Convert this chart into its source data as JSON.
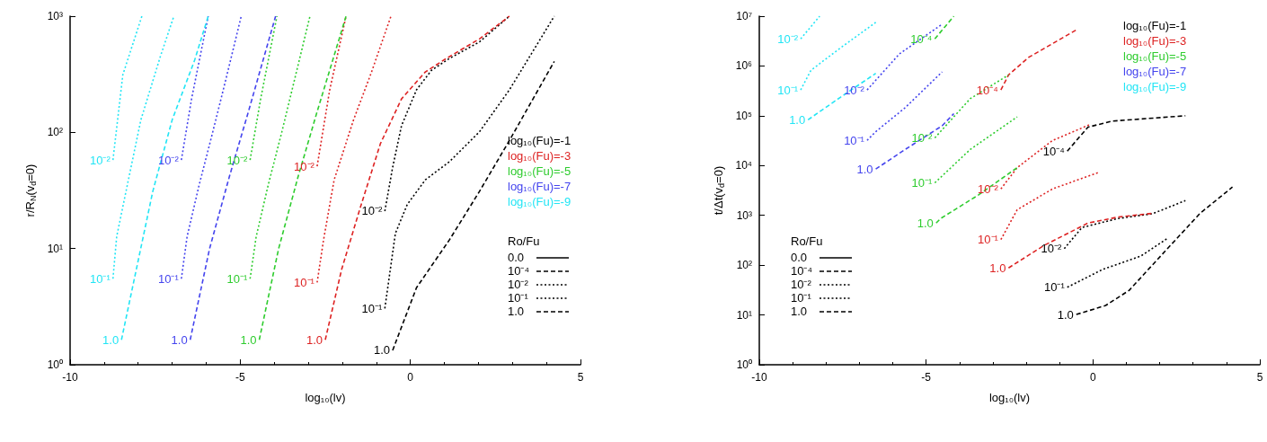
{
  "chart_data": [
    {
      "type": "line",
      "xlabel": "log₁₀(lv)",
      "ylabel": "r/R$_{N}$(v$_{d}$=0)",
      "legend_title": "Ro/Fu",
      "xlim": [
        -10,
        5
      ],
      "xticks": [
        -10,
        -5,
        0,
        5
      ],
      "ylim": [
        1,
        1000
      ],
      "yticks": [
        {
          "value": 1,
          "label": "10⁰"
        },
        {
          "value": 10,
          "label": "10¹"
        },
        {
          "value": 100,
          "label": "10²"
        },
        {
          "value": 1000,
          "label": "10³"
        }
      ],
      "log": "y",
      "grid": false,
      "legend": "right",
      "marker": "none",
      "series": [
        {
          "name": "10⁻²",
          "color": "#000000",
          "line_style": "dotted",
          "x": [
            -0.75,
            -0.52,
            -0.26,
            0.18,
            0.62,
            1.15,
            2.03,
            2.91
          ],
          "values": [
            21,
            50,
            114,
            232,
            342,
            433,
            600,
            1000
          ]
        },
        {
          "name": "10⁻¹",
          "color": "#000000",
          "line_style": "dotted",
          "x": [
            -0.75,
            -0.44,
            -0.09,
            0.44,
            1.15,
            2.03,
            2.91,
            4.23
          ],
          "values": [
            3.05,
            13.5,
            24,
            39,
            56,
            101,
            232,
            1000
          ]
        },
        {
          "name": "1.0",
          "color": "#000000",
          "line_style": "dashed",
          "x": [
            -0.52,
            0.18,
            1.15,
            2.03,
            2.91,
            4.23
          ],
          "values": [
            1.33,
            4.6,
            11.9,
            31,
            85,
            408
          ]
        },
        {
          "name": "10⁻²",
          "color": "#dd2222",
          "line_style": "dotted",
          "x": [
            -2.74,
            -2.37,
            -1.89
          ],
          "values": [
            51,
            232,
            1000
          ]
        },
        {
          "name": "10⁻¹",
          "color": "#dd2222",
          "line_style": "dotted",
          "x": [
            -2.74,
            -2.55,
            -2.24,
            -1.67,
            -1.14,
            -0.57
          ],
          "values": [
            5.1,
            11.9,
            39,
            128,
            331,
            1000
          ]
        },
        {
          "name": "1.0",
          "color": "#dd2222",
          "line_style": "dashed",
          "x": [
            -2.5,
            -2.02,
            -1.49,
            -0.88,
            -0.26,
            0.44,
            1.06,
            2.03,
            2.91
          ],
          "values": [
            1.64,
            6.6,
            21.6,
            80,
            194,
            331,
            433,
            637,
            1000
          ]
        },
        {
          "name": "10⁻²",
          "color": "#2ecc2e",
          "line_style": "dotted",
          "x": [
            -4.71,
            -4.4,
            -3.92
          ],
          "values": [
            57.8,
            194,
            1000
          ]
        },
        {
          "name": "10⁻¹",
          "color": "#2ecc2e",
          "line_style": "dotted",
          "x": [
            -4.71,
            -4.53,
            -4.18,
            -3.78,
            -3.39,
            -2.95
          ],
          "values": [
            5.5,
            12.7,
            35,
            100,
            295,
            1000
          ]
        },
        {
          "name": "1.0",
          "color": "#2ecc2e",
          "line_style": "dashed",
          "x": [
            -4.44,
            -3.87,
            -3.3,
            -2.73,
            -1.89
          ],
          "values": [
            1.64,
            10,
            41.5,
            154,
            1000
          ]
        },
        {
          "name": "10⁻²",
          "color": "#4444ee",
          "line_style": "dotted",
          "x": [
            -6.73,
            -6.43,
            -5.94
          ],
          "values": [
            57.8,
            194,
            1000
          ]
        },
        {
          "name": "10⁻¹",
          "color": "#4444ee",
          "line_style": "dotted",
          "x": [
            -6.73,
            -6.56,
            -6.21,
            -5.81,
            -5.41,
            -4.97
          ],
          "values": [
            5.5,
            12.7,
            35,
            100,
            295,
            1000
          ]
        },
        {
          "name": "1.0",
          "color": "#4444ee",
          "line_style": "dashed",
          "x": [
            -6.47,
            -5.9,
            -5.32,
            -4.75,
            -3.96
          ],
          "values": [
            1.64,
            10,
            41.5,
            154,
            1000
          ]
        },
        {
          "name": "10⁻²",
          "color": "#22e5f5",
          "line_style": "dotted",
          "x": [
            -8.74,
            -8.45,
            -7.89
          ],
          "values": [
            57.8,
            313,
            1000
          ]
        },
        {
          "name": "10⁻¹",
          "color": "#22e5f5",
          "line_style": "dotted",
          "x": [
            -8.74,
            -8.63,
            -8.32,
            -7.92,
            -7.35,
            -6.95
          ],
          "values": [
            5.5,
            12.7,
            35,
            128,
            447,
            1000
          ]
        },
        {
          "name": "1.0",
          "color": "#22e5f5",
          "line_style": "dashed",
          "x": [
            -8.49,
            -7.57,
            -7.0,
            -6.34,
            -5.94
          ],
          "values": [
            1.64,
            31,
            128,
            418,
            1000
          ]
        }
      ],
      "annotations": [
        "log₁₀(Fu)=-1",
        "log₁₀(Fu)=-3",
        "log₁₀(Fu)=-5",
        "log₁₀(Fu)=-7",
        "log₁₀(Fu)=-9",
        "0.0",
        "10⁻⁴",
        "10⁻²",
        "10⁻¹",
        "1.0"
      ]
    },
    {
      "type": "line",
      "xlabel": "log₁₀(lv)",
      "ylabel": "t/Δt(v$_{d}$=0)",
      "legend_title": "Ro/Fu",
      "xlim": [
        -10,
        5
      ],
      "xticks": [
        -10,
        -5,
        0,
        5
      ],
      "ylim": [
        1,
        10000000
      ],
      "yticks": [
        {
          "value": 1,
          "label": "10⁰"
        },
        {
          "value": 10,
          "label": "10¹"
        },
        {
          "value": 100,
          "label": "10²"
        },
        {
          "value": 1000,
          "label": "10³"
        },
        {
          "value": 10000,
          "label": "10⁴"
        },
        {
          "value": 100000,
          "label": "10⁵"
        },
        {
          "value": 1000000,
          "label": "10⁶"
        },
        {
          "value": 10000000,
          "label": "10⁷"
        }
      ],
      "log": "y",
      "grid": false,
      "legend": "bottom left",
      "marker": "none",
      "series": [
        {
          "name": "10⁻⁴",
          "color": "#000000",
          "line_style": "dashed",
          "x": [
            -0.77,
            -0.15,
            0.56,
            2.77
          ],
          "values": [
            19500,
            59000,
            78000,
            100000
          ]
        },
        {
          "name": "10⁻²",
          "color": "#000000",
          "line_style": "dotted",
          "x": [
            -0.86,
            -0.33,
            0.73,
            1.79,
            2.77
          ],
          "values": [
            215,
            570,
            860,
            1080,
            1980
          ]
        },
        {
          "name": "10⁻¹",
          "color": "#000000",
          "line_style": "dotted",
          "x": [
            -0.77,
            0.29,
            1.44,
            2.24
          ],
          "values": [
            36,
            82,
            153,
            348
          ]
        },
        {
          "name": "1.0",
          "color": "#000000",
          "line_style": "dashed",
          "x": [
            -0.5,
            0.38,
            1.08,
            2.15,
            3.21,
            4.18
          ],
          "values": [
            10.2,
            15.5,
            31,
            187,
            1100,
            3700
          ]
        },
        {
          "name": "10⁻⁴",
          "color": "#dd2222",
          "line_style": "dashed",
          "x": [
            -2.76,
            -2.53,
            -1.92,
            -0.5
          ],
          "values": [
            330000,
            660000,
            1500000,
            5300000
          ]
        },
        {
          "name": "10⁻²",
          "color": "#dd2222",
          "line_style": "dotted",
          "x": [
            -2.76,
            -2.27,
            -1.21,
            -0.06
          ],
          "values": [
            3400,
            9100,
            32000,
            68000
          ]
        },
        {
          "name": "10⁻¹",
          "color": "#dd2222",
          "line_style": "dotted",
          "x": [
            -2.76,
            -2.27,
            -1.21,
            0.2
          ],
          "values": [
            326,
            1300,
            3400,
            7400
          ]
        },
        {
          "name": "1.0",
          "color": "#dd2222",
          "line_style": "dashed",
          "x": [
            -2.53,
            -1.47,
            -0.15,
            0.73,
            1.79
          ],
          "values": [
            88,
            248,
            700,
            920,
            1100
          ]
        },
        {
          "name": "10⁻⁴",
          "color": "#2ecc2e",
          "line_style": "dashed",
          "x": [
            -4.74,
            -4.17
          ],
          "values": [
            3500000,
            10000000
          ]
        },
        {
          "name": "10⁻²",
          "color": "#2ecc2e",
          "line_style": "dotted",
          "x": [
            -4.74,
            -3.68,
            -2.53
          ],
          "values": [
            36000,
            220000,
            660000
          ]
        },
        {
          "name": "10⁻¹",
          "color": "#2ecc2e",
          "line_style": "dotted",
          "x": [
            -4.74,
            -3.68,
            -2.27
          ],
          "values": [
            4500,
            21000,
            95000
          ]
        },
        {
          "name": "1.0",
          "color": "#2ecc2e",
          "line_style": "dashed",
          "x": [
            -4.7,
            -4.57,
            -3.42,
            -2.27
          ],
          "values": [
            700,
            860,
            2600,
            9100
          ]
        },
        {
          "name": "10⁻²",
          "color": "#4444ee",
          "line_style": "dotted",
          "x": [
            -6.77,
            -5.8,
            -4.52
          ],
          "values": [
            330000,
            1750000,
            6900000
          ]
        },
        {
          "name": "10⁻¹",
          "color": "#4444ee",
          "line_style": "dotted",
          "x": [
            -6.77,
            -6.51,
            -5.63,
            -4.52
          ],
          "values": [
            32000,
            48000,
            145000,
            760000
          ]
        },
        {
          "name": "1.0",
          "color": "#4444ee",
          "line_style": "dashed",
          "x": [
            -6.51,
            -5.63,
            -4.52,
            -4.17
          ],
          "values": [
            8500,
            21000,
            63000,
            110000
          ]
        },
        {
          "name": "10⁻²",
          "color": "#22e5f5",
          "line_style": "dotted",
          "x": [
            -8.76,
            -8.19
          ],
          "values": [
            3500000,
            10000000
          ]
        },
        {
          "name": "10⁻¹",
          "color": "#22e5f5",
          "line_style": "dotted",
          "x": [
            -8.76,
            -8.45,
            -7.57,
            -6.51
          ],
          "values": [
            330000,
            820000,
            2300000,
            7500000
          ]
        },
        {
          "name": "1.0",
          "color": "#22e5f5",
          "line_style": "dashed",
          "x": [
            -8.54,
            -7.57,
            -6.51
          ],
          "values": [
            83000,
            235000,
            710000
          ]
        }
      ],
      "annotations": [
        "log₁₀(Fu)=-1",
        "log₁₀(Fu)=-3",
        "log₁₀(Fu)=-5",
        "log₁₀(Fu)=-7",
        "log₁₀(Fu)=-9",
        "0.0",
        "10⁻⁴",
        "10⁻²",
        "10⁻¹",
        "1.0"
      ]
    }
  ]
}
